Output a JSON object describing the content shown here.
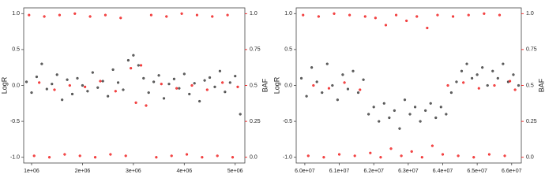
{
  "chart_data": [
    {
      "type": "scatter",
      "y_label": "LogR",
      "y2_label": "BAF",
      "xlim": [
        845000,
        5190000
      ],
      "ylim": [
        -1.08,
        1.08
      ],
      "y2lim": [
        -0.04,
        1.04
      ],
      "xticks": [
        {
          "value": 1000000,
          "label": "1e+06"
        },
        {
          "value": 2000000,
          "label": "2e+06"
        },
        {
          "value": 3000000,
          "label": "3e+06"
        },
        {
          "value": 4000000,
          "label": "4e+06"
        },
        {
          "value": 5000000,
          "label": "5e+06"
        }
      ],
      "yticks": [
        {
          "value": -1,
          "label": "-1.0"
        },
        {
          "value": -0.5,
          "label": "-0.5"
        },
        {
          "value": 0,
          "label": "0.0"
        },
        {
          "value": 0.5,
          "label": "0.5"
        },
        {
          "value": 1,
          "label": "1.0"
        }
      ],
      "y2ticks": [
        {
          "value": 0,
          "label": "0.0"
        },
        0.25,
        0.5,
        0.75,
        {
          "value": 1,
          "label": "1.0"
        }
      ],
      "series": [
        {
          "color": "#222222",
          "x": [
            900000,
            1000000,
            1100000,
            1200000,
            1300000,
            1400000,
            1500000,
            1600000,
            1700000,
            1800000,
            1900000,
            2000000,
            2100000,
            2200000,
            2300000,
            2400000,
            2500000,
            2600000,
            2700000,
            2800000,
            2900000,
            3000000,
            3100000,
            3200000,
            3300000,
            3400000,
            3500000,
            3600000,
            3700000,
            3800000,
            3900000,
            4000000,
            4100000,
            4200000,
            4300000,
            4400000,
            4500000,
            4600000,
            4700000,
            4800000,
            4900000,
            5000000,
            5100000
          ],
          "values": [
            0.05,
            -0.1,
            0.12,
            0.3,
            -0.05,
            0.02,
            0.15,
            -0.2,
            0.08,
            -0.12,
            0.1,
            0.0,
            -0.08,
            0.18,
            -0.03,
            0.06,
            -0.15,
            0.22,
            0.04,
            -0.06,
            0.35,
            0.42,
            0.28,
            0.1,
            -0.1,
            0.05,
            0.14,
            -0.18,
            0.02,
            0.09,
            -0.04,
            0.16,
            -0.12,
            0.03,
            -0.22,
            0.07,
            0.11,
            -0.02,
            0.2,
            -0.09,
            0.04,
            0.13,
            -0.4
          ]
        },
        {
          "color": "#ee0000",
          "axis": "y2",
          "x": [
            950000,
            1050000,
            1150000,
            1250000,
            1350000,
            1450000,
            1550000,
            1650000,
            1750000,
            1850000,
            1950000,
            2050000,
            2150000,
            2250000,
            2350000,
            2450000,
            2550000,
            2650000,
            2750000,
            2850000,
            2950000,
            3050000,
            3150000,
            3250000,
            3350000,
            3450000,
            3550000,
            3650000,
            3750000,
            3850000,
            3950000,
            4050000,
            4150000,
            4250000,
            4350000,
            4450000,
            4550000,
            4650000,
            4750000,
            4850000,
            4950000,
            5050000
          ],
          "values": [
            0.99,
            0.01,
            0.52,
            0.98,
            0.0,
            0.47,
            0.99,
            0.02,
            0.5,
            1.0,
            0.01,
            0.49,
            0.98,
            0.0,
            0.53,
            0.99,
            0.02,
            0.46,
            0.97,
            0.01,
            0.62,
            0.38,
            0.64,
            0.36,
            0.99,
            0.0,
            0.51,
            0.98,
            0.01,
            0.48,
            1.0,
            0.02,
            0.5,
            0.99,
            0.0,
            0.47,
            0.98,
            0.01,
            0.52,
            0.99,
            0.0,
            0.49
          ]
        }
      ]
    },
    {
      "type": "scatter",
      "y_label": "LogR",
      "y2_label": "BAF",
      "xlim": [
        59750000,
        66280000
      ],
      "ylim": [
        -1.08,
        1.08
      ],
      "y2lim": [
        -0.04,
        1.04
      ],
      "xticks": [
        {
          "value": 60000000,
          "label": "6.0e+07"
        },
        {
          "value": 61000000,
          "label": "6.1e+07"
        },
        {
          "value": 62000000,
          "label": "6.2e+07"
        },
        {
          "value": 63000000,
          "label": "6.3e+07"
        },
        {
          "value": 64000000,
          "label": "6.4e+07"
        },
        {
          "value": 65000000,
          "label": "6.5e+07"
        },
        {
          "value": 66000000,
          "label": "6.6e+07"
        }
      ],
      "yticks": [
        {
          "value": -1,
          "label": "-1.0"
        },
        {
          "value": -0.5,
          "label": "-0.5"
        },
        {
          "value": 0,
          "label": "0.0"
        },
        {
          "value": 0.5,
          "label": "0.5"
        },
        {
          "value": 1,
          "label": "1.0"
        }
      ],
      "y2ticks": [
        {
          "value": 0,
          "label": "0.0"
        },
        0.25,
        0.5,
        0.75,
        {
          "value": 1,
          "label": "1.0"
        }
      ],
      "series": [
        {
          "color": "#222222",
          "x": [
            59900000,
            60050000,
            60200000,
            60350000,
            60500000,
            60650000,
            60800000,
            60950000,
            61100000,
            61250000,
            61400000,
            61550000,
            61700000,
            61850000,
            62000000,
            62150000,
            62300000,
            62450000,
            62600000,
            62750000,
            62900000,
            63050000,
            63200000,
            63350000,
            63500000,
            63650000,
            63800000,
            63950000,
            64100000,
            64250000,
            64400000,
            64550000,
            64700000,
            64850000,
            65000000,
            65150000,
            65300000,
            65450000,
            65600000,
            65750000,
            65900000,
            66050000,
            66200000
          ],
          "values": [
            0.1,
            -0.15,
            0.25,
            0.05,
            -0.1,
            0.3,
            0.0,
            -0.2,
            0.15,
            -0.05,
            0.2,
            -0.1,
            0.08,
            -0.4,
            -0.3,
            -0.5,
            -0.25,
            -0.45,
            -0.35,
            -0.6,
            -0.2,
            -0.4,
            -0.3,
            -0.5,
            -0.35,
            -0.25,
            -0.45,
            -0.3,
            -0.4,
            -0.1,
            0.05,
            0.2,
            0.3,
            0.1,
            0.15,
            0.25,
            0.0,
            0.2,
            0.1,
            0.3,
            0.05,
            0.15,
            0.0
          ]
        },
        {
          "color": "#ee0000",
          "axis": "y2",
          "x": [
            59950000,
            60100000,
            60250000,
            60400000,
            60550000,
            60700000,
            60850000,
            61000000,
            61150000,
            61300000,
            61450000,
            61600000,
            61750000,
            61900000,
            62050000,
            62200000,
            62350000,
            62500000,
            62650000,
            62800000,
            62950000,
            63100000,
            63250000,
            63400000,
            63550000,
            63700000,
            63850000,
            64000000,
            64150000,
            64300000,
            64450000,
            64600000,
            64750000,
            64900000,
            65050000,
            65200000,
            65350000,
            65500000,
            65650000,
            65800000,
            65950000,
            66100000
          ],
          "values": [
            0.99,
            0.01,
            0.5,
            0.98,
            0.0,
            0.48,
            1.0,
            0.02,
            0.52,
            0.99,
            0.01,
            0.47,
            0.98,
            0.03,
            0.97,
            0.0,
            0.92,
            0.06,
            0.99,
            0.01,
            0.95,
            0.04,
            0.98,
            0.0,
            0.9,
            0.08,
            0.99,
            0.02,
            0.5,
            0.98,
            0.01,
            0.52,
            0.99,
            0.0,
            0.48,
            1.0,
            0.02,
            0.5,
            0.99,
            0.01,
            0.53,
            0.47
          ]
        }
      ]
    }
  ]
}
